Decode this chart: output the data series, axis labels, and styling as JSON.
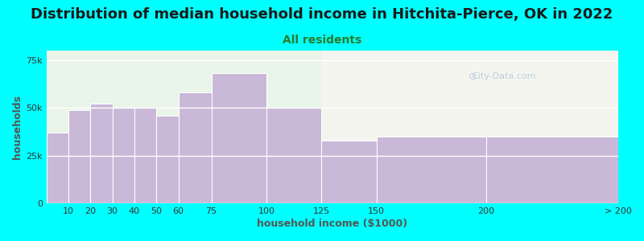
{
  "title": "Distribution of median household income in Hitchita-Pierce, OK in 2022",
  "subtitle": "All residents",
  "xlabel": "household income ($1000)",
  "ylabel": "households",
  "background_outer": "#00FFFF",
  "background_inner_left": "#eaf5ea",
  "background_inner_right": "#f5f5f0",
  "bar_color": "#c9b8d8",
  "bar_edge_color": "#ffffff",
  "bin_edges": [
    0,
    10,
    20,
    30,
    40,
    50,
    60,
    75,
    100,
    125,
    150,
    200,
    260
  ],
  "xtick_positions": [
    10,
    20,
    30,
    40,
    50,
    60,
    75,
    100,
    125,
    150,
    200
  ],
  "xtick_extra": 260,
  "xtick_extra_label": "> 200",
  "values": [
    37000,
    49000,
    52000,
    50000,
    50000,
    46000,
    58000,
    68000,
    50000,
    33000,
    35000,
    35000
  ],
  "ylim": [
    0,
    80000
  ],
  "yticks": [
    0,
    25000,
    50000,
    75000
  ],
  "ytick_labels": [
    "0",
    "25k",
    "50k",
    "75k"
  ],
  "title_fontsize": 13,
  "subtitle_fontsize": 10,
  "axis_label_fontsize": 9,
  "tick_fontsize": 8,
  "title_color": "#1a1a1a",
  "subtitle_color": "#2a7a2a",
  "axis_label_color": "#555555",
  "watermark_text": "City-Data.com",
  "green_bg_end": 125
}
